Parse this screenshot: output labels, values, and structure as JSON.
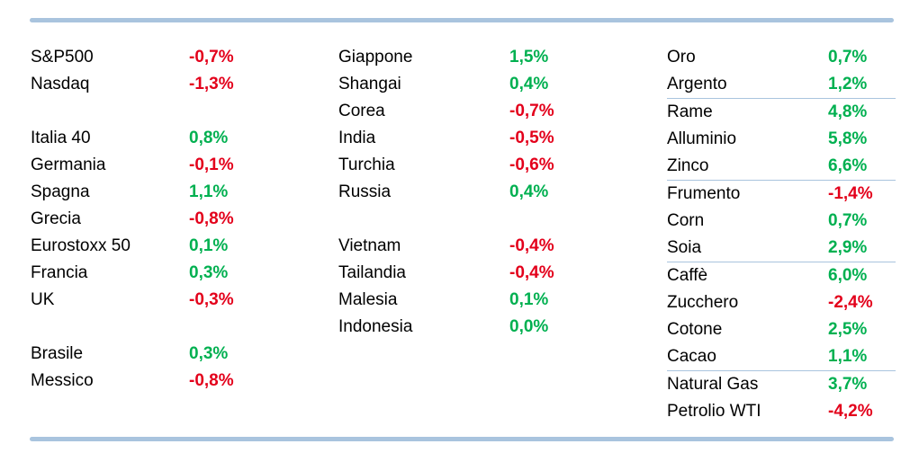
{
  "colors": {
    "positive": "#00b050",
    "negative": "#e3001b",
    "rule": "#a9c4de"
  },
  "columns": [
    {
      "rows": [
        {
          "name": "S&P500",
          "value": "-0,7%",
          "sign": "neg"
        },
        {
          "name": "Nasdaq",
          "value": "-1,3%",
          "sign": "neg"
        },
        {
          "name": "",
          "value": "",
          "sign": ""
        },
        {
          "name": "Italia 40",
          "value": "0,8%",
          "sign": "pos"
        },
        {
          "name": "Germania",
          "value": "-0,1%",
          "sign": "neg"
        },
        {
          "name": "Spagna",
          "value": "1,1%",
          "sign": "pos"
        },
        {
          "name": "Grecia",
          "value": "-0,8%",
          "sign": "neg"
        },
        {
          "name": "Eurostoxx 50",
          "value": "0,1%",
          "sign": "pos"
        },
        {
          "name": "Francia",
          "value": "0,3%",
          "sign": "pos"
        },
        {
          "name": "UK",
          "value": "-0,3%",
          "sign": "neg"
        },
        {
          "name": "",
          "value": "",
          "sign": ""
        },
        {
          "name": "Brasile",
          "value": "0,3%",
          "sign": "pos"
        },
        {
          "name": "Messico",
          "value": "-0,8%",
          "sign": "neg"
        }
      ]
    },
    {
      "rows": [
        {
          "name": "Giappone",
          "value": "1,5%",
          "sign": "pos"
        },
        {
          "name": "Shangai",
          "value": "0,4%",
          "sign": "pos"
        },
        {
          "name": "Corea",
          "value": "-0,7%",
          "sign": "neg"
        },
        {
          "name": "India",
          "value": "-0,5%",
          "sign": "neg"
        },
        {
          "name": "Turchia",
          "value": "-0,6%",
          "sign": "neg"
        },
        {
          "name": "Russia",
          "value": "0,4%",
          "sign": "pos"
        },
        {
          "name": "",
          "value": "",
          "sign": ""
        },
        {
          "name": "Vietnam",
          "value": "-0,4%",
          "sign": "neg"
        },
        {
          "name": "Tailandia",
          "value": "-0,4%",
          "sign": "neg"
        },
        {
          "name": "Malesia",
          "value": "0,1%",
          "sign": "pos"
        },
        {
          "name": "Indonesia",
          "value": "0,0%",
          "sign": "pos"
        }
      ]
    },
    {
      "rows": [
        {
          "name": "Oro",
          "value": "0,7%",
          "sign": "pos"
        },
        {
          "name": "Argento",
          "value": "1,2%",
          "sign": "pos",
          "sep": true
        },
        {
          "name": "Rame",
          "value": "4,8%",
          "sign": "pos"
        },
        {
          "name": "Alluminio",
          "value": "5,8%",
          "sign": "pos"
        },
        {
          "name": "Zinco",
          "value": "6,6%",
          "sign": "pos",
          "sep": true
        },
        {
          "name": "Frumento",
          "value": "-1,4%",
          "sign": "neg"
        },
        {
          "name": "Corn",
          "value": "0,7%",
          "sign": "pos"
        },
        {
          "name": "Soia",
          "value": "2,9%",
          "sign": "pos",
          "sep": true
        },
        {
          "name": "Caffè",
          "value": "6,0%",
          "sign": "pos"
        },
        {
          "name": "Zucchero",
          "value": "-2,4%",
          "sign": "neg"
        },
        {
          "name": "Cotone",
          "value": "2,5%",
          "sign": "pos"
        },
        {
          "name": "Cacao",
          "value": "1,1%",
          "sign": "pos",
          "sep": true
        },
        {
          "name": "Natural Gas",
          "value": "3,7%",
          "sign": "pos"
        },
        {
          "name": "Petrolio WTI",
          "value": "-4,2%",
          "sign": "neg"
        }
      ]
    }
  ]
}
